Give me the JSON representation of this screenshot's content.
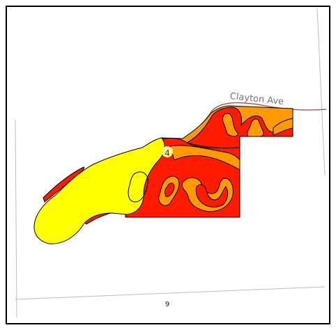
{
  "map": {
    "street_label": "Clayton Ave",
    "parcel_number": "9",
    "zone_label": "4"
  },
  "colors": {
    "background": "#ffffff",
    "frame": "#000000",
    "parcel_line": "#b8b8b8",
    "road": "#c0392b",
    "yellow_zone": "#ffff00",
    "red_zone": "#ff1a00",
    "orange_zone": "#ff9a00",
    "outline": "#000000"
  }
}
